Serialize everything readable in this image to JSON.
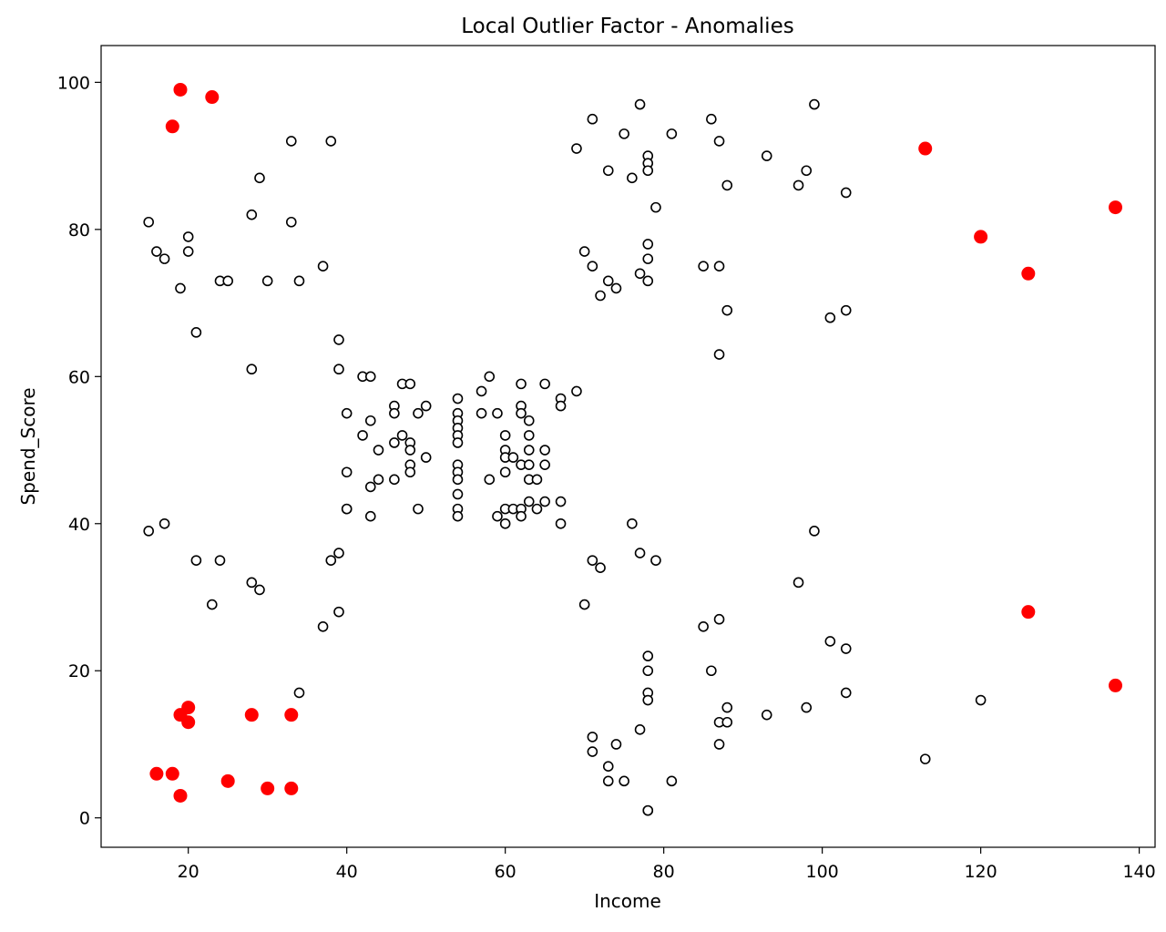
{
  "chart_data": {
    "type": "scatter",
    "title": "Local Outlier Factor - Anomalies",
    "xlabel": "Income",
    "ylabel": "Spend_Score",
    "xlim": [
      9,
      142
    ],
    "ylim": [
      -4,
      105
    ],
    "xticks": [
      20,
      40,
      60,
      80,
      100,
      120,
      140
    ],
    "yticks": [
      0,
      20,
      40,
      60,
      80,
      100
    ],
    "grid": false,
    "legend": "none",
    "colors": {
      "normal_edge": "#000000",
      "normal_fill": "#ffffff",
      "anomaly": "#ff0000"
    },
    "series": [
      {
        "marker": "hollow-circle",
        "points": [
          [
            15,
            81
          ],
          [
            16,
            77
          ],
          [
            17,
            76
          ],
          [
            19,
            72
          ],
          [
            20,
            79
          ],
          [
            20,
            77
          ],
          [
            21,
            66
          ],
          [
            24,
            73
          ],
          [
            25,
            73
          ],
          [
            28,
            82
          ],
          [
            28,
            61
          ],
          [
            29,
            87
          ],
          [
            30,
            73
          ],
          [
            33,
            92
          ],
          [
            33,
            81
          ],
          [
            34,
            73
          ],
          [
            37,
            75
          ],
          [
            38,
            92
          ],
          [
            15,
            39
          ],
          [
            17,
            40
          ],
          [
            21,
            35
          ],
          [
            23,
            29
          ],
          [
            24,
            35
          ],
          [
            28,
            32
          ],
          [
            29,
            31
          ],
          [
            34,
            17
          ],
          [
            37,
            26
          ],
          [
            38,
            35
          ],
          [
            39,
            36
          ],
          [
            39,
            28
          ],
          [
            39,
            65
          ],
          [
            39,
            61
          ],
          [
            40,
            55
          ],
          [
            40,
            47
          ],
          [
            40,
            42
          ],
          [
            40,
            42
          ],
          [
            42,
            52
          ],
          [
            42,
            60
          ],
          [
            43,
            60
          ],
          [
            43,
            54
          ],
          [
            43,
            45
          ],
          [
            43,
            41
          ],
          [
            44,
            50
          ],
          [
            44,
            46
          ],
          [
            46,
            51
          ],
          [
            46,
            46
          ],
          [
            46,
            56
          ],
          [
            46,
            55
          ],
          [
            47,
            52
          ],
          [
            47,
            59
          ],
          [
            48,
            59
          ],
          [
            48,
            51
          ],
          [
            48,
            50
          ],
          [
            48,
            48
          ],
          [
            48,
            47
          ],
          [
            49,
            55
          ],
          [
            49,
            42
          ],
          [
            50,
            49
          ],
          [
            50,
            56
          ],
          [
            54,
            57
          ],
          [
            54,
            55
          ],
          [
            54,
            54
          ],
          [
            54,
            53
          ],
          [
            54,
            52
          ],
          [
            54,
            51
          ],
          [
            54,
            48
          ],
          [
            54,
            47
          ],
          [
            54,
            46
          ],
          [
            54,
            44
          ],
          [
            54,
            42
          ],
          [
            54,
            41
          ],
          [
            57,
            58
          ],
          [
            57,
            55
          ],
          [
            58,
            60
          ],
          [
            58,
            46
          ],
          [
            59,
            55
          ],
          [
            59,
            41
          ],
          [
            60,
            52
          ],
          [
            60,
            50
          ],
          [
            60,
            49
          ],
          [
            60,
            47
          ],
          [
            60,
            42
          ],
          [
            60,
            40
          ],
          [
            61,
            49
          ],
          [
            61,
            42
          ],
          [
            62,
            59
          ],
          [
            62,
            56
          ],
          [
            62,
            55
          ],
          [
            62,
            48
          ],
          [
            62,
            42
          ],
          [
            62,
            41
          ],
          [
            63,
            54
          ],
          [
            63,
            52
          ],
          [
            63,
            50
          ],
          [
            63,
            48
          ],
          [
            63,
            46
          ],
          [
            63,
            43
          ],
          [
            64,
            46
          ],
          [
            64,
            42
          ],
          [
            65,
            59
          ],
          [
            65,
            50
          ],
          [
            65,
            48
          ],
          [
            65,
            43
          ],
          [
            67,
            57
          ],
          [
            67,
            56
          ],
          [
            67,
            43
          ],
          [
            67,
            40
          ],
          [
            69,
            58
          ],
          [
            69,
            91
          ],
          [
            70,
            77
          ],
          [
            71,
            95
          ],
          [
            71,
            75
          ],
          [
            72,
            71
          ],
          [
            73,
            88
          ],
          [
            73,
            73
          ],
          [
            74,
            72
          ],
          [
            75,
            93
          ],
          [
            76,
            87
          ],
          [
            77,
            97
          ],
          [
            77,
            74
          ],
          [
            78,
            90
          ],
          [
            78,
            89
          ],
          [
            78,
            88
          ],
          [
            78,
            78
          ],
          [
            78,
            76
          ],
          [
            78,
            73
          ],
          [
            79,
            83
          ],
          [
            81,
            93
          ],
          [
            85,
            75
          ],
          [
            86,
            95
          ],
          [
            87,
            92
          ],
          [
            87,
            75
          ],
          [
            87,
            63
          ],
          [
            88,
            86
          ],
          [
            88,
            69
          ],
          [
            93,
            90
          ],
          [
            97,
            86
          ],
          [
            98,
            88
          ],
          [
            99,
            97
          ],
          [
            101,
            68
          ],
          [
            103,
            85
          ],
          [
            103,
            69
          ],
          [
            70,
            29
          ],
          [
            71,
            35
          ],
          [
            71,
            11
          ],
          [
            71,
            9
          ],
          [
            72,
            34
          ],
          [
            73,
            7
          ],
          [
            73,
            5
          ],
          [
            74,
            10
          ],
          [
            75,
            5
          ],
          [
            76,
            40
          ],
          [
            77,
            36
          ],
          [
            77,
            12
          ],
          [
            78,
            22
          ],
          [
            78,
            20
          ],
          [
            78,
            17
          ],
          [
            78,
            16
          ],
          [
            78,
            1
          ],
          [
            78,
            1
          ],
          [
            79,
            35
          ],
          [
            81,
            5
          ],
          [
            85,
            26
          ],
          [
            86,
            20
          ],
          [
            87,
            27
          ],
          [
            87,
            13
          ],
          [
            87,
            10
          ],
          [
            88,
            15
          ],
          [
            88,
            13
          ],
          [
            93,
            14
          ],
          [
            97,
            32
          ],
          [
            98,
            15
          ],
          [
            99,
            39
          ],
          [
            101,
            24
          ],
          [
            103,
            23
          ],
          [
            103,
            17
          ],
          [
            113,
            8
          ],
          [
            120,
            16
          ]
        ]
      },
      {
        "marker": "filled-circle",
        "points": [
          [
            18,
            94
          ],
          [
            19,
            99
          ],
          [
            23,
            98
          ],
          [
            113,
            91
          ],
          [
            120,
            79
          ],
          [
            126,
            74
          ],
          [
            137,
            83
          ],
          [
            126,
            28
          ],
          [
            137,
            18
          ],
          [
            19,
            14
          ],
          [
            20,
            15
          ],
          [
            20,
            13
          ],
          [
            28,
            14
          ],
          [
            33,
            14
          ],
          [
            16,
            6
          ],
          [
            18,
            6
          ],
          [
            19,
            3
          ],
          [
            25,
            5
          ],
          [
            30,
            4
          ],
          [
            33,
            4
          ]
        ]
      }
    ]
  }
}
